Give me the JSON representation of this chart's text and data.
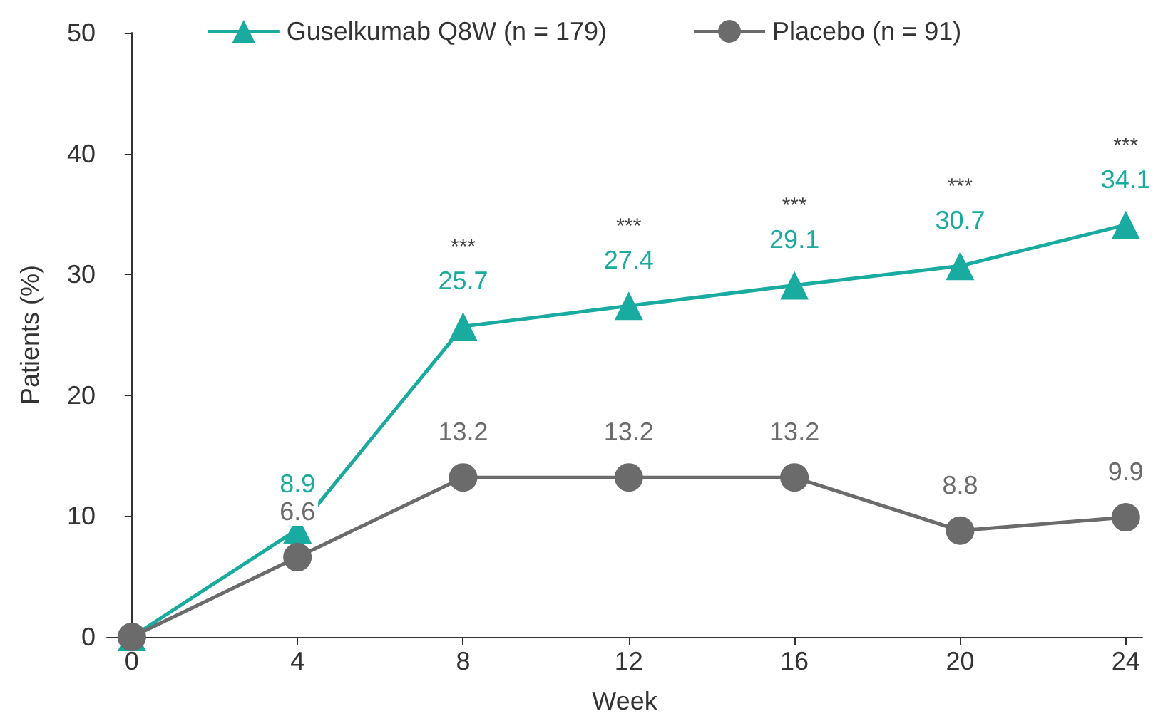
{
  "chart_data": {
    "type": "line",
    "xlabel": "Week",
    "ylabel": "Patients (%)",
    "x": [
      0,
      4,
      8,
      12,
      16,
      20,
      24
    ],
    "xlim": [
      -0.6,
      24.4
    ],
    "xticks": [
      0,
      4,
      8,
      12,
      16,
      20,
      24
    ],
    "ylim": [
      0,
      50
    ],
    "yticks": [
      0,
      10,
      20,
      30,
      40,
      50
    ],
    "grid": false,
    "legend": "top",
    "series": [
      {
        "name": "Guselkumab Q8W (n = 179)",
        "color": "#1aaba0",
        "marker": "triangle",
        "values": [
          0,
          8.9,
          25.7,
          27.4,
          29.1,
          30.7,
          34.1
        ],
        "value_labels": [
          null,
          "8.9",
          "25.7",
          "27.4",
          "29.1",
          "30.7",
          "34.1"
        ]
      },
      {
        "name": "Placebo (n = 91)",
        "color": "#6b6b6b",
        "marker": "circle",
        "values": [
          0,
          6.6,
          13.2,
          13.2,
          13.2,
          8.8,
          9.9
        ],
        "value_labels": [
          null,
          "6.6",
          "13.2",
          "13.2",
          "13.2",
          "8.8",
          "9.9"
        ]
      }
    ],
    "annotations": [
      "***",
      "***",
      "***",
      "***",
      "***"
    ]
  }
}
